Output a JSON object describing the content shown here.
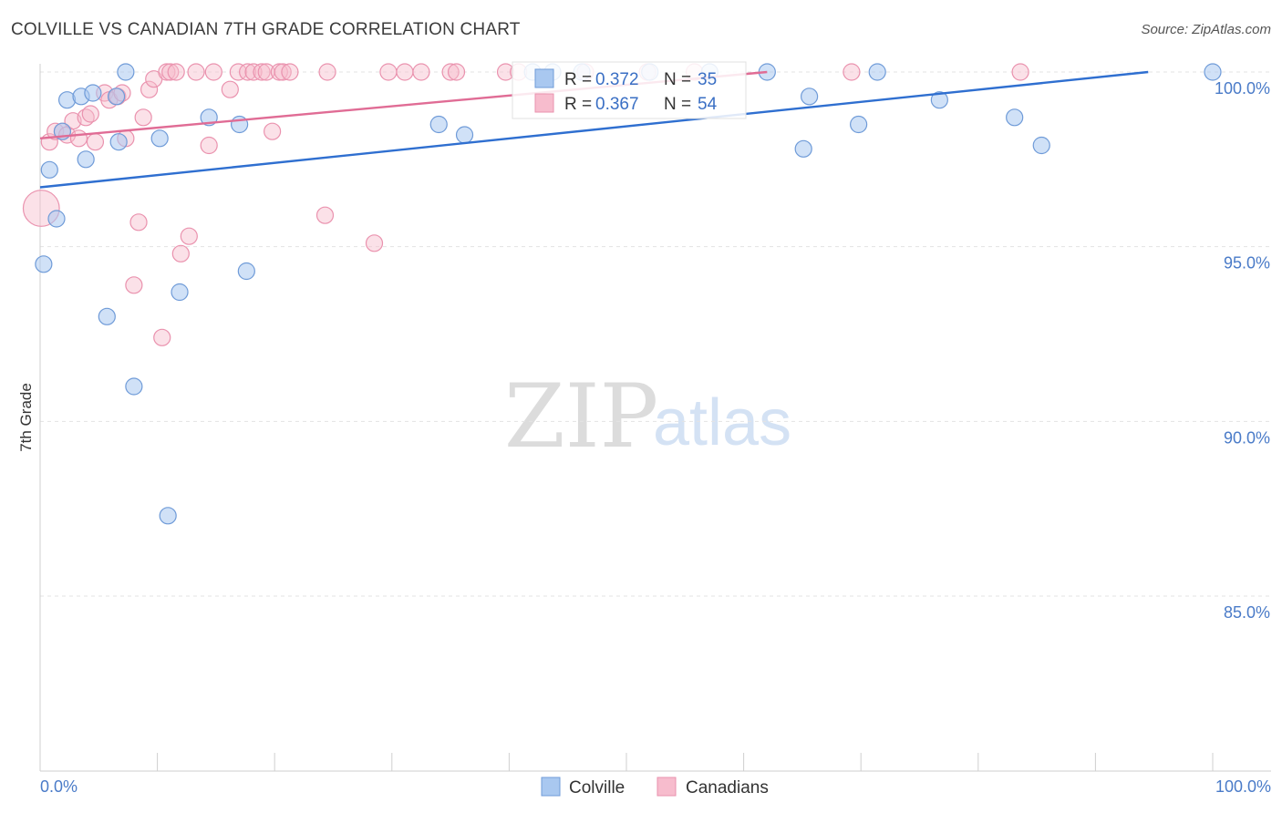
{
  "header": {
    "title": "COLVILLE VS CANADIAN 7TH GRADE CORRELATION CHART",
    "source": "Source: ZipAtlas.com"
  },
  "watermark": {
    "zip": "ZIP",
    "atlas": "atlas"
  },
  "colors": {
    "colville_fill": "#a9c8f0",
    "colville_stroke": "#6f9bd8",
    "colville_line": "#2f6fd0",
    "canadians_fill": "#f7bccd",
    "canadians_stroke": "#ea92ae",
    "canadians_line": "#e06c95",
    "accent_text": "#4a7bc8",
    "grid": "#e3e3e3"
  },
  "stats": {
    "colville": {
      "r_label": "R = ",
      "r_value": "0.372",
      "n_label": "N = ",
      "n_value": "35"
    },
    "canadians": {
      "r_label": "R = ",
      "r_value": "0.367",
      "n_label": "N = ",
      "n_value": "54"
    }
  },
  "chart_data": {
    "type": "scatter",
    "title": "COLVILLE VS CANADIAN 7TH GRADE CORRELATION CHART",
    "xlabel": "",
    "ylabel": "7th Grade",
    "xlim": [
      0,
      100
    ],
    "ylim": [
      80.8,
      100.4
    ],
    "x_tick_labels": [
      "0.0%",
      "100.0%"
    ],
    "y_ticks": [
      {
        "value": 100,
        "label": "100.0%"
      },
      {
        "value": 95,
        "label": "95.0%"
      },
      {
        "value": 90,
        "label": "90.0%"
      },
      {
        "value": 85,
        "label": "85.0%"
      }
    ],
    "grid": true,
    "legend_position": "bottom-center",
    "series": [
      {
        "name": "Colville",
        "r": 0.372,
        "n": 35,
        "trend": {
          "x": [
            0,
            94.5
          ],
          "y": [
            96.7,
            100.0
          ]
        },
        "points": [
          {
            "x": 0.3,
            "y": 94.5,
            "s": 1
          },
          {
            "x": 0.8,
            "y": 97.2,
            "s": 1
          },
          {
            "x": 1.4,
            "y": 95.8,
            "s": 1
          },
          {
            "x": 1.9,
            "y": 98.3,
            "s": 1
          },
          {
            "x": 2.3,
            "y": 99.2,
            "s": 1
          },
          {
            "x": 3.5,
            "y": 99.3,
            "s": 1
          },
          {
            "x": 3.9,
            "y": 97.5,
            "s": 1
          },
          {
            "x": 4.5,
            "y": 99.4,
            "s": 1
          },
          {
            "x": 5.7,
            "y": 93.0,
            "s": 1
          },
          {
            "x": 6.5,
            "y": 99.3,
            "s": 1
          },
          {
            "x": 6.7,
            "y": 98.0,
            "s": 1
          },
          {
            "x": 7.3,
            "y": 100.0,
            "s": 1
          },
          {
            "x": 8.0,
            "y": 91.0,
            "s": 1
          },
          {
            "x": 10.2,
            "y": 98.1,
            "s": 1
          },
          {
            "x": 10.9,
            "y": 87.3,
            "s": 1
          },
          {
            "x": 11.9,
            "y": 93.7,
            "s": 1
          },
          {
            "x": 14.4,
            "y": 98.7,
            "s": 1
          },
          {
            "x": 17.0,
            "y": 98.5,
            "s": 1
          },
          {
            "x": 17.6,
            "y": 94.3,
            "s": 1
          },
          {
            "x": 34.0,
            "y": 98.5,
            "s": 1
          },
          {
            "x": 36.2,
            "y": 98.2,
            "s": 1
          },
          {
            "x": 42.0,
            "y": 100.0,
            "s": 1
          },
          {
            "x": 43.7,
            "y": 100.0,
            "s": 1
          },
          {
            "x": 46.2,
            "y": 100.0,
            "s": 1
          },
          {
            "x": 52.0,
            "y": 100.0,
            "s": 1
          },
          {
            "x": 57.1,
            "y": 100.0,
            "s": 1
          },
          {
            "x": 62.0,
            "y": 100.0,
            "s": 1
          },
          {
            "x": 65.6,
            "y": 99.3,
            "s": 1
          },
          {
            "x": 65.1,
            "y": 97.8,
            "s": 1
          },
          {
            "x": 69.8,
            "y": 98.5,
            "s": 1
          },
          {
            "x": 71.4,
            "y": 100.0,
            "s": 1
          },
          {
            "x": 76.7,
            "y": 99.2,
            "s": 1
          },
          {
            "x": 83.1,
            "y": 98.7,
            "s": 1
          },
          {
            "x": 85.4,
            "y": 97.9,
            "s": 1
          },
          {
            "x": 100.0,
            "y": 100.0,
            "s": 1
          }
        ]
      },
      {
        "name": "Canadians",
        "r": 0.367,
        "n": 54,
        "trend": {
          "x": [
            0,
            62.0
          ],
          "y": [
            98.1,
            100.0
          ]
        },
        "points": [
          {
            "x": 0.1,
            "y": 96.1,
            "s": 2.2
          },
          {
            "x": 0.8,
            "y": 98.0,
            "s": 1
          },
          {
            "x": 1.3,
            "y": 98.3,
            "s": 1
          },
          {
            "x": 1.9,
            "y": 98.3,
            "s": 1
          },
          {
            "x": 2.3,
            "y": 98.2,
            "s": 1
          },
          {
            "x": 2.8,
            "y": 98.6,
            "s": 1
          },
          {
            "x": 3.3,
            "y": 98.1,
            "s": 1
          },
          {
            "x": 3.9,
            "y": 98.7,
            "s": 1
          },
          {
            "x": 4.3,
            "y": 98.8,
            "s": 1
          },
          {
            "x": 4.7,
            "y": 98.0,
            "s": 1
          },
          {
            "x": 5.5,
            "y": 99.4,
            "s": 1
          },
          {
            "x": 5.9,
            "y": 99.2,
            "s": 1
          },
          {
            "x": 6.6,
            "y": 99.3,
            "s": 1
          },
          {
            "x": 7.0,
            "y": 99.4,
            "s": 1
          },
          {
            "x": 7.3,
            "y": 98.1,
            "s": 1
          },
          {
            "x": 8.0,
            "y": 93.9,
            "s": 1
          },
          {
            "x": 8.4,
            "y": 95.7,
            "s": 1
          },
          {
            "x": 8.8,
            "y": 98.7,
            "s": 1
          },
          {
            "x": 9.3,
            "y": 99.5,
            "s": 1
          },
          {
            "x": 9.7,
            "y": 99.8,
            "s": 1
          },
          {
            "x": 10.4,
            "y": 92.4,
            "s": 1
          },
          {
            "x": 10.8,
            "y": 100.0,
            "s": 1
          },
          {
            "x": 11.1,
            "y": 100.0,
            "s": 1
          },
          {
            "x": 11.6,
            "y": 100.0,
            "s": 1
          },
          {
            "x": 12.0,
            "y": 94.8,
            "s": 1
          },
          {
            "x": 12.7,
            "y": 95.3,
            "s": 1
          },
          {
            "x": 13.3,
            "y": 100.0,
            "s": 1
          },
          {
            "x": 14.4,
            "y": 97.9,
            "s": 1
          },
          {
            "x": 14.8,
            "y": 100.0,
            "s": 1
          },
          {
            "x": 16.2,
            "y": 99.5,
            "s": 1
          },
          {
            "x": 16.9,
            "y": 100.0,
            "s": 1
          },
          {
            "x": 17.7,
            "y": 100.0,
            "s": 1
          },
          {
            "x": 18.2,
            "y": 100.0,
            "s": 1
          },
          {
            "x": 18.9,
            "y": 100.0,
            "s": 1
          },
          {
            "x": 19.3,
            "y": 100.0,
            "s": 1
          },
          {
            "x": 19.8,
            "y": 98.3,
            "s": 1
          },
          {
            "x": 20.4,
            "y": 100.0,
            "s": 1
          },
          {
            "x": 20.7,
            "y": 100.0,
            "s": 1
          },
          {
            "x": 21.3,
            "y": 100.0,
            "s": 1
          },
          {
            "x": 24.3,
            "y": 95.9,
            "s": 1
          },
          {
            "x": 24.5,
            "y": 100.0,
            "s": 1
          },
          {
            "x": 28.5,
            "y": 95.1,
            "s": 1
          },
          {
            "x": 29.7,
            "y": 100.0,
            "s": 1
          },
          {
            "x": 31.1,
            "y": 100.0,
            "s": 1
          },
          {
            "x": 32.5,
            "y": 100.0,
            "s": 1
          },
          {
            "x": 35.0,
            "y": 100.0,
            "s": 1
          },
          {
            "x": 35.5,
            "y": 100.0,
            "s": 1
          },
          {
            "x": 39.7,
            "y": 100.0,
            "s": 1
          },
          {
            "x": 40.8,
            "y": 100.0,
            "s": 1
          },
          {
            "x": 46.5,
            "y": 100.0,
            "s": 1
          },
          {
            "x": 51.8,
            "y": 100.0,
            "s": 1
          },
          {
            "x": 55.8,
            "y": 100.0,
            "s": 1
          },
          {
            "x": 69.2,
            "y": 100.0,
            "s": 1
          },
          {
            "x": 83.6,
            "y": 100.0,
            "s": 1
          }
        ]
      }
    ]
  }
}
